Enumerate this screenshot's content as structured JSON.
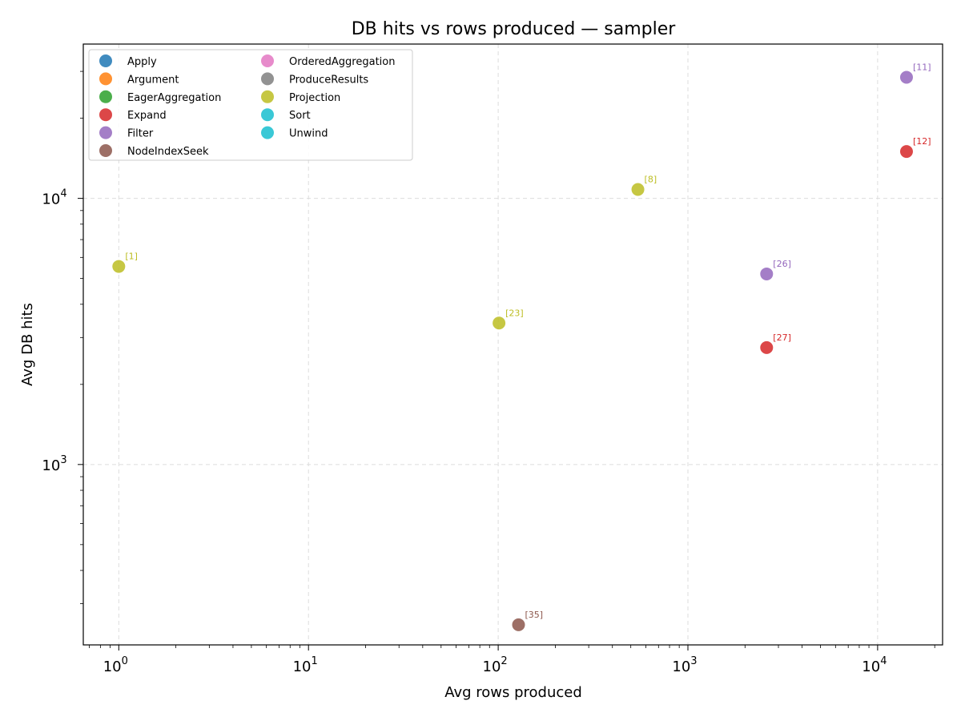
{
  "chart_data": {
    "type": "scatter",
    "title": "DB hits vs rows produced — sampler",
    "xlabel": "Avg rows produced",
    "ylabel": "Avg DB hits",
    "xscale": "log",
    "yscale": "log",
    "xlim": [
      0.65,
      22000
    ],
    "ylim": [
      210,
      38000
    ],
    "grid": true,
    "legend_position": "top-left",
    "x_ticks": [
      {
        "base": "10",
        "exp": "0",
        "value": 1
      },
      {
        "base": "10",
        "exp": "1",
        "value": 10
      },
      {
        "base": "10",
        "exp": "2",
        "value": 100
      },
      {
        "base": "10",
        "exp": "3",
        "value": 1000
      },
      {
        "base": "10",
        "exp": "4",
        "value": 10000
      }
    ],
    "y_ticks": [
      {
        "base": "10",
        "exp": "3",
        "value": 1000
      },
      {
        "base": "10",
        "exp": "4",
        "value": 10000
      }
    ],
    "series": [
      {
        "name": "Apply",
        "color": "#1f77b4",
        "points": []
      },
      {
        "name": "Argument",
        "color": "#ff7f0e",
        "points": []
      },
      {
        "name": "EagerAggregation",
        "color": "#2ca02c",
        "points": []
      },
      {
        "name": "Expand",
        "color": "#d62728",
        "points": [
          {
            "x": 14200,
            "y": 15000,
            "label": "[12]"
          },
          {
            "x": 2600,
            "y": 2750,
            "label": "[27]"
          }
        ]
      },
      {
        "name": "Filter",
        "color": "#9467bd",
        "points": [
          {
            "x": 14200,
            "y": 28500,
            "label": "[11]"
          },
          {
            "x": 2600,
            "y": 5200,
            "label": "[26]"
          }
        ]
      },
      {
        "name": "NodeIndexSeek",
        "color": "#8c564b",
        "points": [
          {
            "x": 128,
            "y": 250,
            "label": "[35]"
          }
        ]
      },
      {
        "name": "OrderedAggregation",
        "color": "#e377c2",
        "points": []
      },
      {
        "name": "ProduceResults",
        "color": "#7f7f7f",
        "points": []
      },
      {
        "name": "Projection",
        "color": "#bcbd22",
        "points": [
          {
            "x": 1,
            "y": 5550,
            "label": "[1]"
          },
          {
            "x": 545,
            "y": 10800,
            "label": "[8]"
          },
          {
            "x": 101,
            "y": 3400,
            "label": "[23]"
          }
        ]
      },
      {
        "name": "Sort",
        "color": "#17becf",
        "points": []
      },
      {
        "name": "Unwind",
        "color": "#17becf",
        "points": []
      }
    ]
  }
}
